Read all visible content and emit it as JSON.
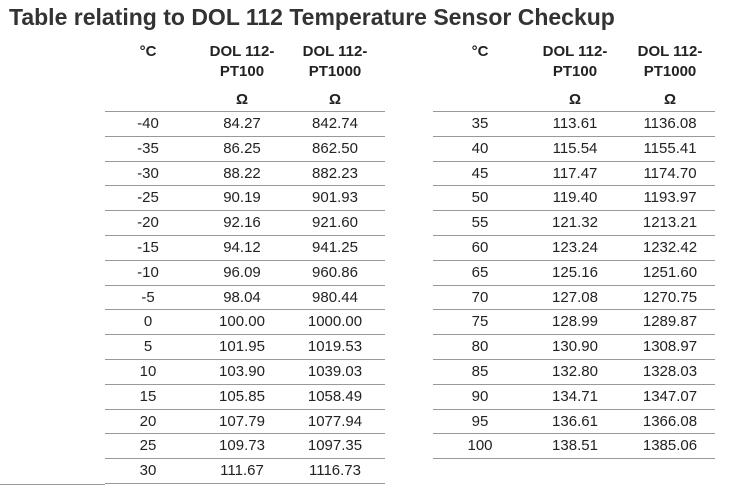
{
  "header": {
    "title": "Table relating to DOL 112 Temperature Sensor Checkup"
  },
  "tables": [
    {
      "columns": [
        {
          "lines": [
            "°C"
          ]
        },
        {
          "lines": [
            "DOL 112-",
            "PT100"
          ],
          "unit": "Ω"
        },
        {
          "lines": [
            "DOL 112-",
            "PT1000"
          ],
          "unit": "Ω"
        }
      ],
      "rows": [
        [
          "-40",
          "84.27",
          "842.74"
        ],
        [
          "-35",
          "86.25",
          "862.50"
        ],
        [
          "-30",
          "88.22",
          "882.23"
        ],
        [
          "-25",
          "90.19",
          "901.93"
        ],
        [
          "-20",
          "92.16",
          "921.60"
        ],
        [
          "-15",
          "94.12",
          "941.25"
        ],
        [
          "-10",
          "96.09",
          "960.86"
        ],
        [
          "-5",
          "98.04",
          "980.44"
        ],
        [
          "0",
          "100.00",
          "1000.00"
        ],
        [
          "5",
          "101.95",
          "1019.53"
        ],
        [
          "10",
          "103.90",
          "1039.03"
        ],
        [
          "15",
          "105.85",
          "1058.49"
        ],
        [
          "20",
          "107.79",
          "1077.94"
        ],
        [
          "25",
          "109.73",
          "1097.35"
        ],
        [
          "30",
          "111.67",
          "1116.73"
        ]
      ]
    },
    {
      "columns": [
        {
          "lines": [
            "°C"
          ]
        },
        {
          "lines": [
            "DOL 112-",
            "PT100"
          ],
          "unit": "Ω"
        },
        {
          "lines": [
            "DOL 112-",
            "PT1000"
          ],
          "unit": "Ω"
        }
      ],
      "rows": [
        [
          "35",
          "113.61",
          "1136.08"
        ],
        [
          "40",
          "115.54",
          "1155.41"
        ],
        [
          "45",
          "117.47",
          "1174.70"
        ],
        [
          "50",
          "119.40",
          "1193.97"
        ],
        [
          "55",
          "121.32",
          "1213.21"
        ],
        [
          "60",
          "123.24",
          "1232.42"
        ],
        [
          "65",
          "125.16",
          "1251.60"
        ],
        [
          "70",
          "127.08",
          "1270.75"
        ],
        [
          "75",
          "128.99",
          "1289.87"
        ],
        [
          "80",
          "130.90",
          "1308.97"
        ],
        [
          "85",
          "132.80",
          "1328.03"
        ],
        [
          "90",
          "134.71",
          "1347.07"
        ],
        [
          "95",
          "136.61",
          "1366.08"
        ],
        [
          "100",
          "138.51",
          "1385.06"
        ]
      ]
    }
  ]
}
